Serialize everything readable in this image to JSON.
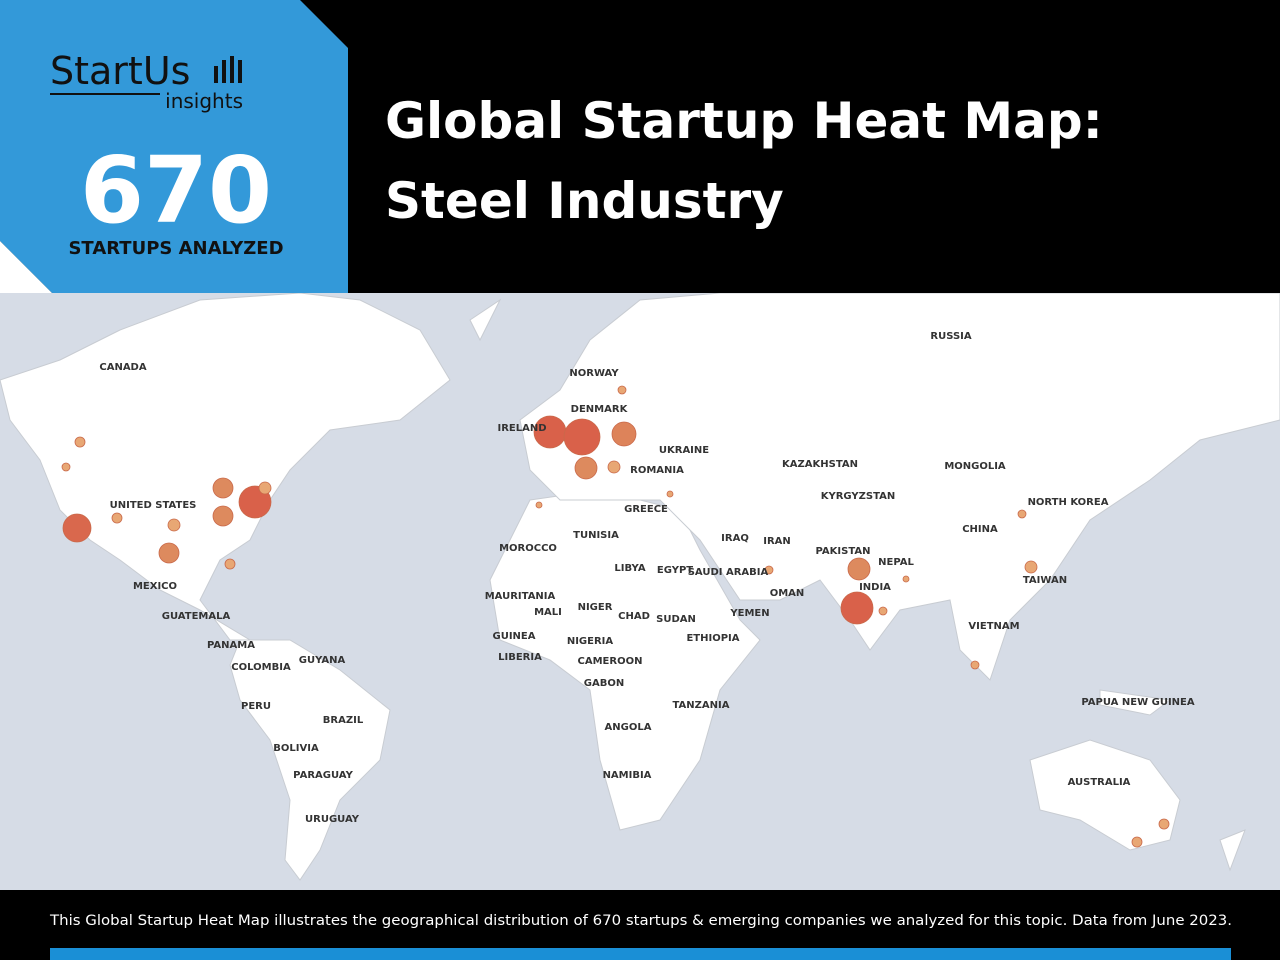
{
  "header": {
    "logo": {
      "name": "StartUs",
      "tagline": "insights"
    },
    "count": 670,
    "count_label": "STARTUPS ANALYZED",
    "title": [
      "Global Startup Heat Map:",
      "Steel Industry"
    ]
  },
  "map": {
    "labels": [
      "RUSSIA",
      "CANADA",
      "UNITED STATES",
      "MEXICO",
      "GUATEMALA",
      "PANAMA",
      "COLOMBIA",
      "GUYANA",
      "PERU",
      "BRAZIL",
      "BOLIVIA",
      "PARAGUAY",
      "URUGUAY",
      "NORWAY",
      "DENMARK",
      "IRELAND",
      "UKRAINE",
      "ROMANIA",
      "GREECE",
      "KAZAKHSTAN",
      "MONGOLIA",
      "KYRGYZSTAN",
      "NORTH KOREA",
      "CHINA",
      "MOROCCO",
      "TUNISIA",
      "IRAQ",
      "IRAN",
      "PAKISTAN",
      "NEPAL",
      "LIBYA",
      "EGYPT",
      "SAUDI ARABIA",
      "INDIA",
      "TAIWAN",
      "OMAN",
      "MAURITANIA",
      "MALI",
      "NIGER",
      "CHAD",
      "SUDAN",
      "YEMEN",
      "VIETNAM",
      "GUINEA",
      "NIGERIA",
      "ETHIOPIA",
      "LIBERIA",
      "CAMEROON",
      "GABON",
      "PAPUA NEW GUINEA",
      "TANZANIA",
      "ANGOLA",
      "NAMIBIA",
      "AUSTRALIA"
    ]
  },
  "footer": {
    "text": "This Global Startup Heat Map illustrates the geographical distribution of 670 startups & emerging companies we analyzed for this topic. Data from June 2023."
  }
}
